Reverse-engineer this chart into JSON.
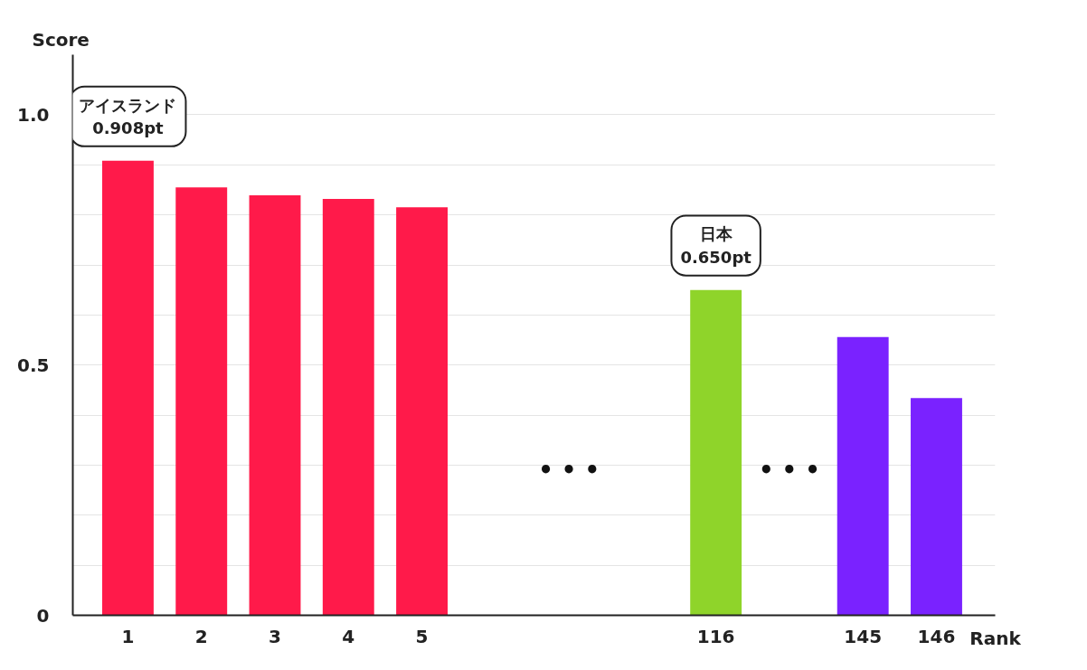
{
  "chart_data": {
    "type": "bar",
    "xlabel": "Rank",
    "ylabel": "Score",
    "categories": [
      "1",
      "2",
      "3",
      "4",
      "5",
      null,
      null,
      null,
      "116",
      null,
      "145",
      "146"
    ],
    "values": [
      0.908,
      0.855,
      0.839,
      0.832,
      0.815,
      null,
      null,
      null,
      0.65,
      null,
      0.556,
      0.434
    ],
    "colors": [
      "#ff1a4a",
      "#ff1a4a",
      "#ff1a4a",
      "#ff1a4a",
      "#ff1a4a",
      null,
      null,
      null,
      "#8fd42a",
      null,
      "#7a22ff",
      "#7a22ff"
    ],
    "value_labels": [
      "アイスランド\n0.908pt",
      null,
      null,
      null,
      null,
      null,
      null,
      null,
      "日本\n0.650pt",
      null,
      null,
      null
    ],
    "annotations": [
      "• • •",
      "• • •"
    ],
    "ylim": [
      0,
      1.12
    ],
    "yticks": [
      0,
      {
        "value": 0.1,
        "label": null
      },
      {
        "value": 0.2,
        "label": null
      },
      {
        "value": 0.3,
        "label": null
      },
      {
        "value": 0.4,
        "label": null
      },
      0.5,
      {
        "value": 0.6,
        "label": null
      },
      {
        "value": 0.7,
        "label": null
      },
      {
        "value": 0.8,
        "label": null
      },
      {
        "value": 0.9,
        "label": null
      },
      {
        "value": 1,
        "label": "1.0"
      }
    ],
    "grid": "y"
  }
}
